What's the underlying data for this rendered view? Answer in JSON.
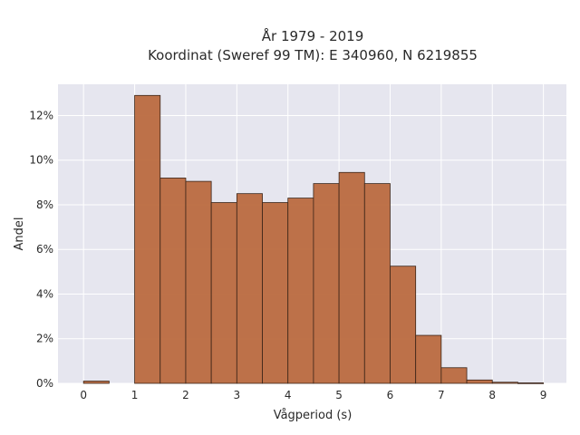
{
  "chart_data": {
    "type": "bar",
    "title_line1": "År 1979 - 2019",
    "title_line2": "Koordinat (Sweref 99 TM): E 340960, N 6219855",
    "xlabel": "Vågperiod (s)",
    "ylabel": "Andel",
    "bin_width": 0.5,
    "bins": [
      {
        "start": 0.0,
        "value": 0.1
      },
      {
        "start": 0.5,
        "value": 0.0
      },
      {
        "start": 1.0,
        "value": 12.9
      },
      {
        "start": 1.5,
        "value": 9.2
      },
      {
        "start": 2.0,
        "value": 9.05
      },
      {
        "start": 2.5,
        "value": 8.1
      },
      {
        "start": 3.0,
        "value": 8.5
      },
      {
        "start": 3.5,
        "value": 8.1
      },
      {
        "start": 4.0,
        "value": 8.3
      },
      {
        "start": 4.5,
        "value": 8.95
      },
      {
        "start": 5.0,
        "value": 9.45
      },
      {
        "start": 5.5,
        "value": 8.95
      },
      {
        "start": 6.0,
        "value": 5.25
      },
      {
        "start": 6.5,
        "value": 2.15
      },
      {
        "start": 7.0,
        "value": 0.7
      },
      {
        "start": 7.5,
        "value": 0.15
      },
      {
        "start": 8.0,
        "value": 0.05
      },
      {
        "start": 8.5,
        "value": 0.02
      }
    ],
    "xlim": [
      -0.5,
      9.45
    ],
    "ylim": [
      0,
      13.4
    ],
    "xticks": [
      0,
      1,
      2,
      3,
      4,
      5,
      6,
      7,
      8,
      9
    ],
    "xtick_labels": [
      "0",
      "1",
      "2",
      "3",
      "4",
      "5",
      "6",
      "7",
      "8",
      "9"
    ],
    "yticks": [
      0,
      2,
      4,
      6,
      8,
      10,
      12
    ],
    "ytick_labels": [
      "0%",
      "2%",
      "4%",
      "6%",
      "8%",
      "10%",
      "12%"
    ],
    "grid": true,
    "colors": {
      "bar_fill": "#bb6a3f",
      "bar_stroke": "#3a2418",
      "plot_background": "#e6e6ef",
      "grid": "#ffffff"
    }
  }
}
